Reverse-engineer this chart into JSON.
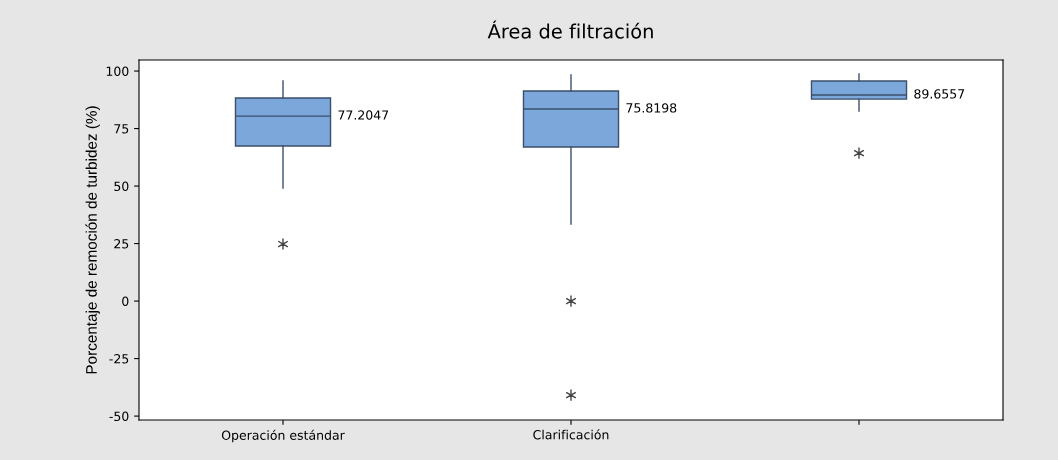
{
  "chart_data": {
    "type": "box",
    "title": "Área de filtración",
    "ylabel": "Porcentaje de remoción de turbidez (%)",
    "categories": [
      "Operación estándar",
      "Clarificación",
      null
    ],
    "boxes": [
      {
        "low": 49.1,
        "q1": 67.4,
        "median": 80.4,
        "q3": 88.3,
        "high": 95.7,
        "outliers": [
          24.8
        ]
      },
      {
        "low": 33.5,
        "q1": 67,
        "median": 83.5,
        "q3": 91.3,
        "high": 98.3,
        "outliers": [
          0,
          -40.9
        ]
      },
      {
        "low": 82.6,
        "q1": 87.8,
        "median": 89.6,
        "q3": 95.7,
        "high": 98.7,
        "outliers": [
          64.3
        ]
      }
    ],
    "annotations": [
      "77.2047",
      "75.8198",
      "89.6557"
    ],
    "color": "#7ba7db",
    "marker": "star",
    "grid": false,
    "legend": false,
    "ylim": [
      -51.7,
      104.8
    ],
    "yticks": [
      -50,
      -25,
      0,
      25,
      50,
      75,
      100
    ]
  }
}
